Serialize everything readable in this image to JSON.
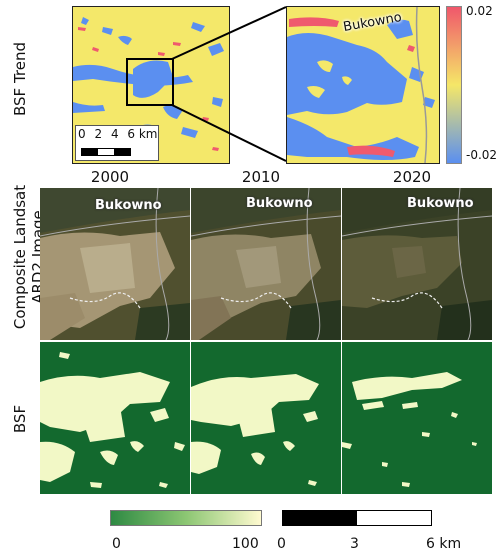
{
  "row_labels": {
    "trend": "BSF Trend",
    "composite_line1": "Composite Landsat",
    "composite_line2": "ARD2 Image",
    "bsf": "BSF"
  },
  "years": [
    "2000",
    "2010",
    "2020"
  ],
  "place_name": "Bukowno",
  "trend_colorbar": {
    "max_label": "0.02",
    "min_label": "-0.02",
    "colors": [
      "#f0576b",
      "#f5e768",
      "#5a8ff0"
    ]
  },
  "inset_scalebar": {
    "ticks": [
      "0",
      "2",
      "4",
      "6 km"
    ]
  },
  "bsf_colorbar": {
    "min_label": "0",
    "max_label": "100",
    "colors": [
      "#2e8a43",
      "#fffad0"
    ]
  },
  "bottom_scalebar": {
    "ticks": [
      "0",
      "3",
      "6 km"
    ]
  },
  "colors": {
    "trend_yellow": "#f4e86a",
    "trend_blue": "#5b8ff0",
    "trend_red": "#ef5a6e",
    "bsf_dark": "#13692e",
    "bsf_light": "#f2f8c6"
  }
}
